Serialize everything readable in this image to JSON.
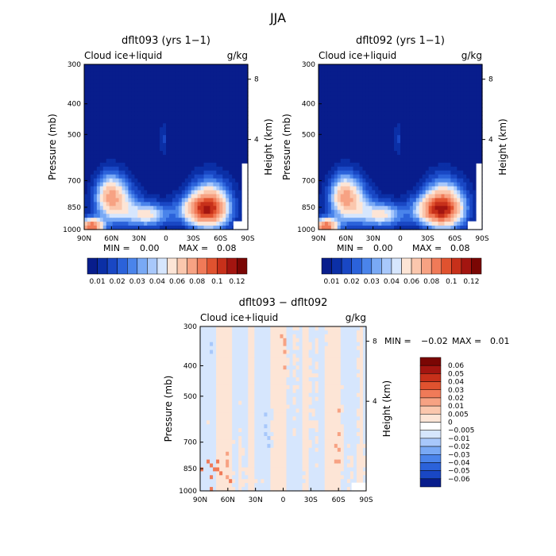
{
  "page_title": "JJA",
  "palette_blue_to_red": [
    "#081d8c",
    "#0b2fa6",
    "#1947c4",
    "#2b62da",
    "#4a84eb",
    "#79a9f5",
    "#a8c8fb",
    "#d6e6fd",
    "#fde5d6",
    "#fbc7ad",
    "#f7a283",
    "#f07a58",
    "#e0522f",
    "#c7301a",
    "#a31510",
    "#7a0604"
  ],
  "chart_data": [
    {
      "type": "heatmap",
      "title": "dflt093 (yrs 1−1)",
      "left_label": "Cloud ice+liquid",
      "right_label": "g/kg",
      "xlabel": "",
      "ylabel": "Pressure (mb)",
      "ylabel_right": "Height (km)",
      "x_ticks": [
        "90N",
        "60N",
        "30N",
        "0",
        "30S",
        "60S",
        "90S"
      ],
      "y_ticks": [
        "300",
        "400",
        "500",
        "700",
        "850",
        "1000"
      ],
      "height_ticks": [
        "8",
        "4"
      ],
      "min_label": "MIN =",
      "min_value": "0.00",
      "max_label": "MAX =",
      "max_value": "0.08",
      "colorbar_labels": [
        "0.01",
        "0.02",
        "0.03",
        "0.04",
        "0.06",
        "0.08",
        "0.1",
        "0.12"
      ],
      "features": [
        {
          "lat": 82,
          "p": 975,
          "amp": 0.078,
          "slat": 9,
          "sp": 35
        },
        {
          "lat": 55,
          "p": 830,
          "amp": 0.044,
          "slat": 15,
          "sp": 90
        },
        {
          "lat": 62,
          "p": 760,
          "amp": 0.03,
          "slat": 10,
          "sp": 70
        },
        {
          "lat": 20,
          "p": 900,
          "amp": 0.04,
          "slat": 15,
          "sp": 55
        },
        {
          "lat": -48,
          "p": 850,
          "amp": 0.075,
          "slat": 15,
          "sp": 95
        },
        {
          "lat": -35,
          "p": 870,
          "amp": 0.035,
          "slat": 18,
          "sp": 60
        },
        {
          "lat": 3,
          "p": 520,
          "amp": 0.012,
          "slat": 2,
          "sp": 40
        }
      ]
    },
    {
      "type": "heatmap",
      "title": "dflt092 (yrs 1−1)",
      "left_label": "Cloud ice+liquid",
      "right_label": "g/kg",
      "xlabel": "",
      "ylabel": "Pressure (mb)",
      "ylabel_right": "Height (km)",
      "x_ticks": [
        "90N",
        "60N",
        "30N",
        "0",
        "30S",
        "60S",
        "90S"
      ],
      "y_ticks": [
        "300",
        "400",
        "500",
        "700",
        "850",
        "1000"
      ],
      "height_ticks": [
        "8",
        "4"
      ],
      "min_label": "MIN =",
      "min_value": "0.00",
      "max_label": "MAX =",
      "max_value": "0.08",
      "colorbar_labels": [
        "0.01",
        "0.02",
        "0.03",
        "0.04",
        "0.06",
        "0.08",
        "0.1",
        "0.12"
      ],
      "features": [
        {
          "lat": 82,
          "p": 975,
          "amp": 0.078,
          "slat": 9,
          "sp": 35
        },
        {
          "lat": 55,
          "p": 830,
          "amp": 0.044,
          "slat": 15,
          "sp": 90
        },
        {
          "lat": 62,
          "p": 760,
          "amp": 0.03,
          "slat": 10,
          "sp": 70
        },
        {
          "lat": 20,
          "p": 900,
          "amp": 0.04,
          "slat": 15,
          "sp": 55
        },
        {
          "lat": -48,
          "p": 850,
          "amp": 0.077,
          "slat": 15,
          "sp": 95
        },
        {
          "lat": -35,
          "p": 870,
          "amp": 0.036,
          "slat": 18,
          "sp": 60
        },
        {
          "lat": 3,
          "p": 520,
          "amp": 0.012,
          "slat": 2,
          "sp": 40
        }
      ]
    },
    {
      "type": "heatmap",
      "title": "dflt093 − dflt092",
      "left_label": "Cloud ice+liquid",
      "right_label": "g/kg",
      "xlabel": "",
      "ylabel": "Pressure (mb)",
      "ylabel_right": "Height (km)",
      "x_ticks": [
        "90N",
        "60N",
        "30N",
        "0",
        "30S",
        "60S",
        "90S"
      ],
      "y_ticks": [
        "300",
        "400",
        "500",
        "700",
        "850",
        "1000"
      ],
      "height_ticks": [
        "8",
        "4"
      ],
      "min_label": "MIN =",
      "min_value": "−0.02",
      "max_label": "MAX =",
      "max_value": "0.01",
      "colorbar_labels": [
        "0.06",
        "0.05",
        "0.04",
        "0.03",
        "0.02",
        "0.01",
        "0.005",
        "0",
        "−0.005",
        "−0.01",
        "−0.02",
        "−0.03",
        "−0.04",
        "−0.05",
        "−0.06"
      ]
    }
  ]
}
